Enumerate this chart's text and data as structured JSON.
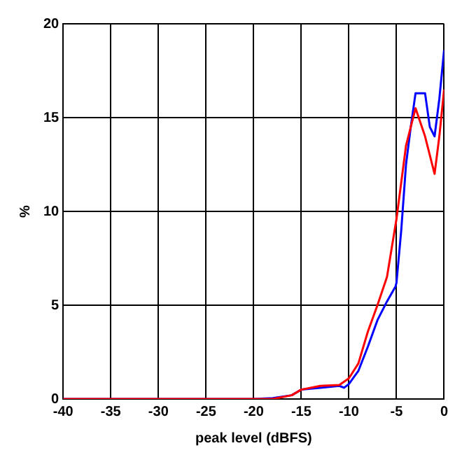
{
  "chart_data": {
    "type": "line",
    "xlabel": "peak level (dBFS)",
    "ylabel": "%",
    "xlim": [
      -40,
      0
    ],
    "xticks": [
      -40,
      -35,
      -30,
      -25,
      -20,
      -15,
      -10,
      -5,
      0
    ],
    "ylim": [
      0,
      20
    ],
    "yticks": [
      0,
      5,
      10,
      15,
      20
    ],
    "grid": true,
    "legend": false,
    "marker": "none",
    "line_style": "solid",
    "series": [
      {
        "color": "#0000ff",
        "x": [
          -40,
          -20,
          -18,
          -16,
          -15,
          -13,
          -11,
          -10.5,
          -10,
          -9,
          -8,
          -7,
          -6,
          -5.1,
          -5,
          -4.5,
          -4,
          -3.5,
          -3,
          -2,
          -1.5,
          -1,
          -0.5,
          0
        ],
        "values": [
          0,
          0,
          0.05,
          0.2,
          0.5,
          0.6,
          0.7,
          0.6,
          0.8,
          1.5,
          2.8,
          4.2,
          5.2,
          6,
          6.2,
          9,
          12.5,
          14.5,
          16.3,
          16.3,
          14.5,
          14,
          16,
          18.6
        ]
      },
      {
        "color": "#ff0000",
        "x": [
          -40,
          -20,
          -18,
          -16,
          -15,
          -13,
          -11,
          -10,
          -9,
          -8,
          -7,
          -6,
          -5,
          -4,
          -3,
          -2,
          -1,
          -0.5,
          0
        ],
        "values": [
          0,
          0,
          0,
          0.2,
          0.5,
          0.7,
          0.75,
          1.1,
          1.9,
          3.6,
          5,
          6.5,
          9.6,
          13.5,
          15.5,
          14,
          12,
          14,
          16.5
        ]
      }
    ]
  }
}
